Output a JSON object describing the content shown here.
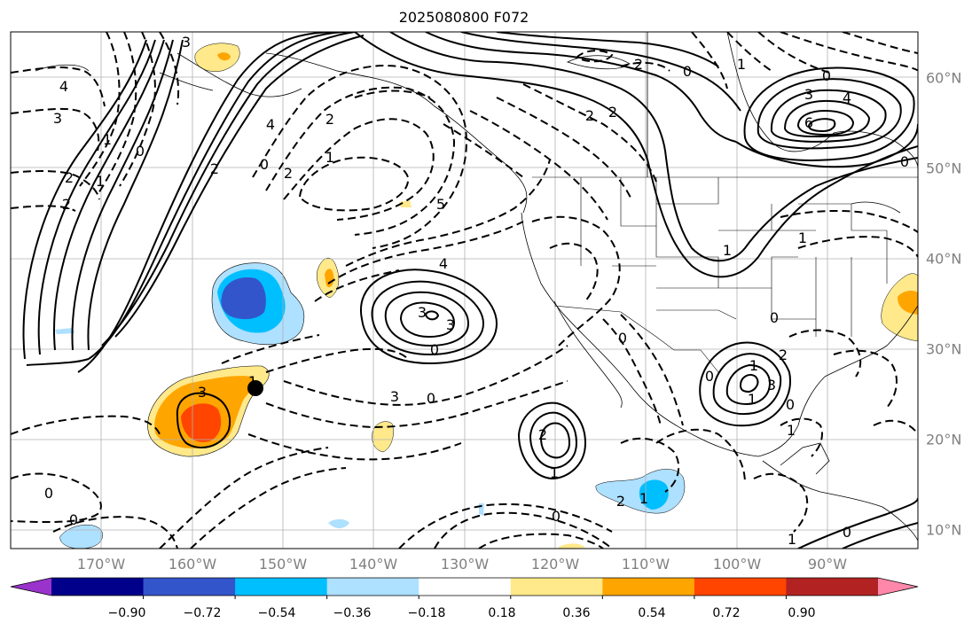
{
  "title": "2025080800 F072",
  "lon_labels": [
    "170°W",
    "160°W",
    "150°W",
    "140°W",
    "130°W",
    "120°W",
    "110°W",
    "100°W",
    "90°W"
  ],
  "lat_labels": [
    "60°N",
    "50°N",
    "40°N",
    "30°N",
    "20°N",
    "10°N"
  ],
  "colorbar": {
    "ticks": [
      "−0.90",
      "−0.72",
      "−0.54",
      "−0.36",
      "−0.18",
      "0.18",
      "0.36",
      "0.54",
      "0.72",
      "0.90"
    ],
    "colors": [
      "#9933cc",
      "#00008b",
      "#3355cc",
      "#00bfff",
      "#aee0ff",
      "#ffffff",
      "#ffe98a",
      "#ffa500",
      "#ff4500",
      "#b22222",
      "#ff88aa"
    ]
  },
  "contour_labels": [
    "4",
    "3",
    "2",
    "3",
    "2",
    "0",
    "1",
    "1",
    "2",
    "0",
    "2",
    "1",
    "4",
    "5",
    "2",
    "4",
    "3",
    "3",
    "0",
    "3",
    "2",
    "1",
    "3",
    "0",
    "6",
    "4",
    "3",
    "0",
    "1",
    "2",
    "2",
    "0",
    "1",
    "0",
    "1",
    "3",
    "2",
    "1",
    "0",
    "1",
    "0",
    "2",
    "1",
    "0",
    "0",
    "1",
    "2",
    "0",
    "1",
    "0",
    "0",
    "1",
    "0"
  ]
}
